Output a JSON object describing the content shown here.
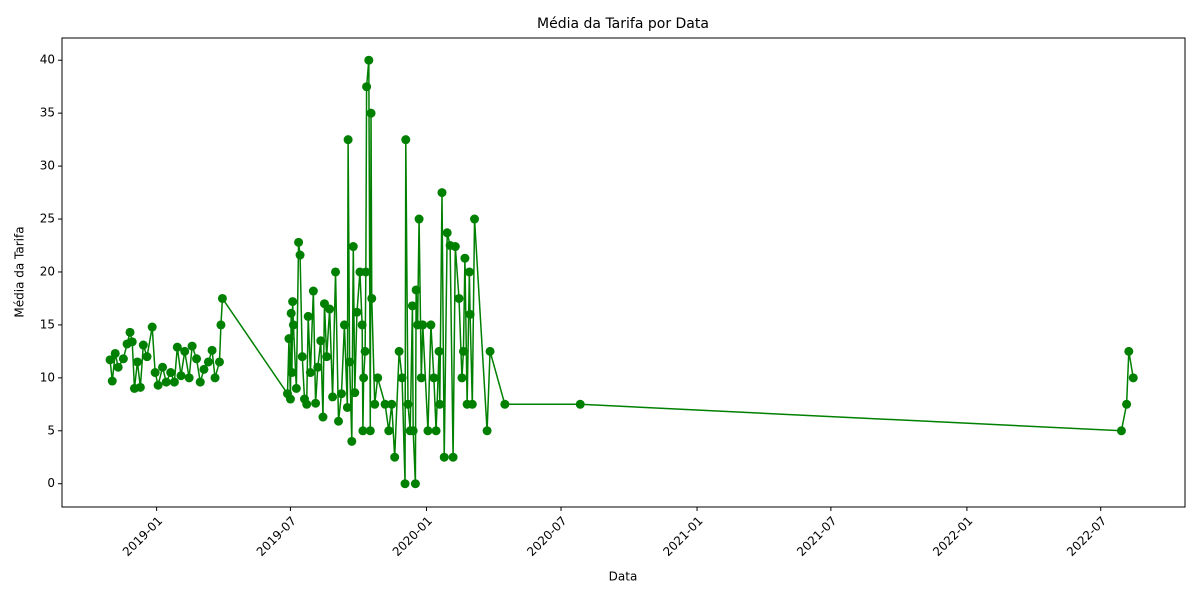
{
  "chart_data": {
    "type": "line",
    "title": "Média da Tarifa por Data",
    "xlabel": "Data",
    "ylabel": "Média da Tarifa",
    "color": "#008000",
    "marker": "o",
    "grid": false,
    "xlim": [
      "2018-08-26",
      "2022-10-23"
    ],
    "ylim": [
      -2.2,
      42.1
    ],
    "yticks": [
      0,
      5,
      10,
      15,
      20,
      25,
      30,
      35,
      40
    ],
    "xticks": [
      {
        "value": "2019-01-01",
        "label": "2019-01"
      },
      {
        "value": "2019-07-01",
        "label": "2019-07"
      },
      {
        "value": "2020-01-01",
        "label": "2020-01"
      },
      {
        "value": "2020-07-01",
        "label": "2020-07"
      },
      {
        "value": "2021-01-01",
        "label": "2021-01"
      },
      {
        "value": "2021-07-01",
        "label": "2021-07"
      },
      {
        "value": "2022-01-01",
        "label": "2022-01"
      },
      {
        "value": "2022-07-01",
        "label": "2022-07"
      }
    ],
    "x": [
      "2018-10-30",
      "2018-11-02",
      "2018-11-06",
      "2018-11-10",
      "2018-11-17",
      "2018-11-22",
      "2018-11-26",
      "2018-11-29",
      "2018-12-02",
      "2018-12-06",
      "2018-12-10",
      "2018-12-14",
      "2018-12-19",
      "2018-12-26",
      "2018-12-30",
      "2019-01-03",
      "2019-01-09",
      "2019-01-14",
      "2019-01-20",
      "2019-01-25",
      "2019-01-29",
      "2019-02-03",
      "2019-02-08",
      "2019-02-14",
      "2019-02-18",
      "2019-02-24",
      "2019-03-01",
      "2019-03-06",
      "2019-03-12",
      "2019-03-17",
      "2019-03-21",
      "2019-03-27",
      "2019-03-29",
      "2019-03-31",
      "2019-06-27",
      "2019-06-29",
      "2019-07-01",
      "2019-07-02",
      "2019-07-03",
      "2019-07-04",
      "2019-07-05",
      "2019-07-09",
      "2019-07-12",
      "2019-07-14",
      "2019-07-17",
      "2019-07-20",
      "2019-07-23",
      "2019-07-25",
      "2019-07-28",
      "2019-08-01",
      "2019-08-04",
      "2019-08-07",
      "2019-08-11",
      "2019-08-14",
      "2019-08-16",
      "2019-08-19",
      "2019-08-23",
      "2019-08-27",
      "2019-08-31",
      "2019-09-04",
      "2019-09-08",
      "2019-09-12",
      "2019-09-16",
      "2019-09-17",
      "2019-09-19",
      "2019-09-22",
      "2019-09-24",
      "2019-09-26",
      "2019-09-29",
      "2019-10-03",
      "2019-10-06",
      "2019-10-07",
      "2019-10-08",
      "2019-10-10",
      "2019-10-11",
      "2019-10-12",
      "2019-10-15",
      "2019-10-17",
      "2019-10-18",
      "2019-10-19",
      "2019-10-23",
      "2019-10-27",
      "2019-11-06",
      "2019-11-11",
      "2019-11-15",
      "2019-11-19",
      "2019-11-25",
      "2019-11-29",
      "2019-12-03",
      "2019-12-04",
      "2019-12-07",
      "2019-12-10",
      "2019-12-13",
      "2019-12-14",
      "2019-12-17",
      "2019-12-18",
      "2019-12-20",
      "2019-12-22",
      "2019-12-25",
      "2019-12-27",
      "2020-01-03",
      "2020-01-07",
      "2020-01-11",
      "2020-01-14",
      "2020-01-18",
      "2020-01-19",
      "2020-01-22",
      "2020-01-25",
      "2020-01-29",
      "2020-02-02",
      "2020-02-06",
      "2020-02-09",
      "2020-02-14",
      "2020-02-18",
      "2020-02-20",
      "2020-02-22",
      "2020-02-25",
      "2020-02-28",
      "2020-02-29",
      "2020-03-03",
      "2020-03-06",
      "2020-03-23",
      "2020-03-27",
      "2020-04-16",
      "2020-07-27",
      "2022-07-29",
      "2022-08-05",
      "2022-08-08",
      "2022-08-14"
    ],
    "values": [
      11.7,
      9.7,
      12.3,
      11.0,
      11.8,
      13.2,
      14.3,
      13.4,
      9.0,
      11.5,
      9.1,
      13.1,
      12.0,
      14.8,
      10.5,
      9.3,
      11.0,
      9.6,
      10.5,
      9.6,
      12.9,
      10.2,
      12.5,
      10.0,
      13.0,
      11.8,
      9.6,
      10.8,
      11.5,
      12.6,
      10.0,
      11.5,
      15.0,
      17.5,
      8.5,
      13.7,
      8.0,
      16.1,
      10.5,
      17.2,
      15.0,
      9.0,
      22.8,
      21.6,
      12.0,
      8.0,
      7.5,
      15.8,
      10.5,
      18.2,
      7.6,
      11.0,
      13.5,
      6.3,
      17.0,
      12.0,
      16.5,
      8.2,
      20.0,
      5.9,
      8.5,
      15.0,
      7.2,
      32.5,
      11.5,
      4.0,
      22.4,
      8.6,
      16.2,
      20.0,
      15.0,
      5.0,
      10.0,
      12.5,
      20.0,
      37.5,
      40.0,
      5.0,
      35.0,
      17.5,
      7.5,
      10.0,
      7.5,
      5.0,
      7.5,
      2.5,
      12.5,
      10.0,
      0.0,
      32.5,
      7.5,
      5.0,
      16.8,
      5.0,
      0.0,
      18.3,
      15.0,
      25.0,
      10.0,
      15.0,
      5.0,
      15.0,
      10.0,
      5.0,
      12.5,
      7.5,
      27.5,
      2.5,
      23.7,
      22.5,
      2.5,
      22.4,
      17.5,
      10.0,
      12.5,
      21.3,
      7.5,
      20.0,
      16.0,
      7.5,
      25.0,
      5.0,
      12.5,
      7.5,
      7.5,
      5.0,
      7.5,
      12.5,
      10.0
    ]
  }
}
